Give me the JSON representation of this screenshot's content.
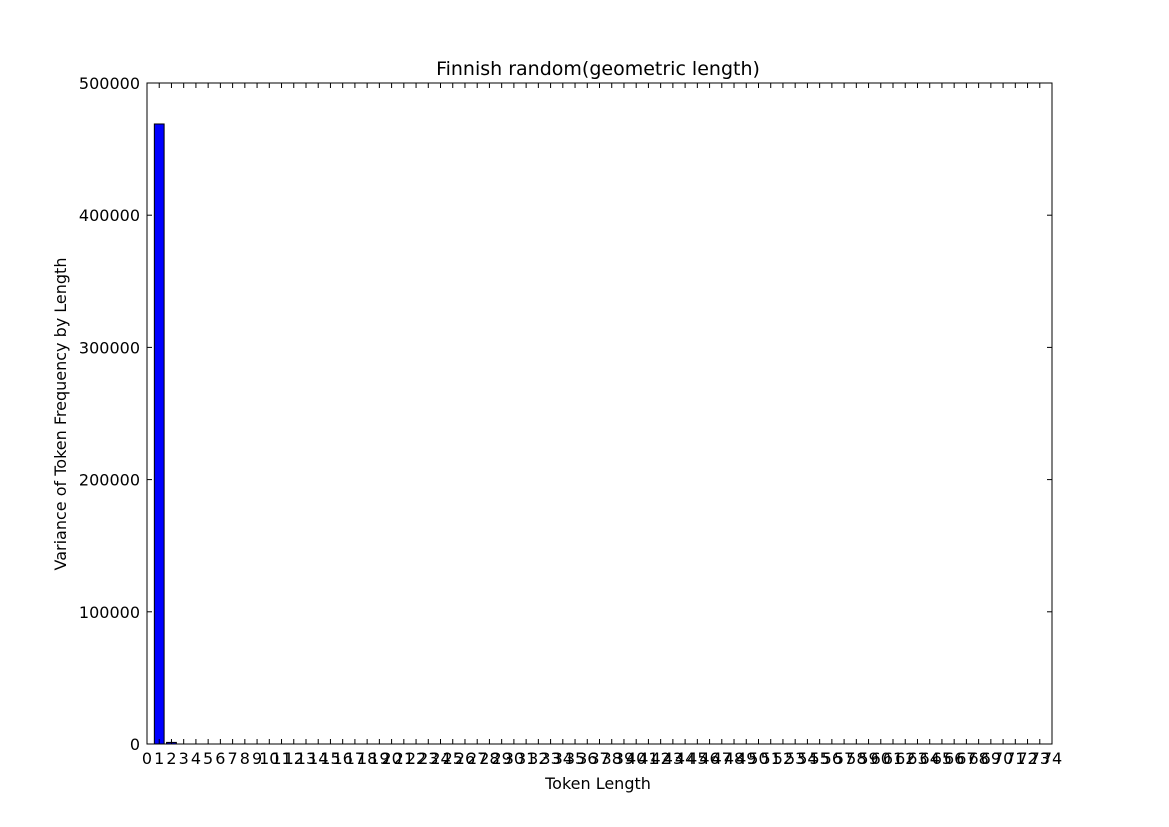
{
  "chart_data": {
    "type": "bar",
    "title": "Finnish random(geometric length)",
    "xlabel": "Token Length",
    "ylabel": "Variance of Token Frequency by Length",
    "x": [
      1,
      2
    ],
    "values": [
      469000,
      1200
    ],
    "xlim": [
      0,
      74
    ],
    "ylim": [
      0,
      500000
    ],
    "xticks": [
      0,
      1,
      2,
      3,
      4,
      5,
      6,
      7,
      8,
      9,
      10,
      11,
      12,
      13,
      14,
      15,
      16,
      17,
      18,
      19,
      20,
      21,
      22,
      23,
      24,
      25,
      26,
      27,
      28,
      29,
      30,
      31,
      32,
      33,
      34,
      35,
      36,
      37,
      38,
      39,
      40,
      41,
      42,
      43,
      44,
      45,
      46,
      47,
      48,
      49,
      50,
      51,
      52,
      53,
      54,
      55,
      56,
      57,
      58,
      59,
      60,
      61,
      62,
      63,
      64,
      65,
      66,
      67,
      68,
      69,
      70,
      71,
      72,
      73,
      74
    ],
    "yticks": [
      0,
      100000,
      200000,
      300000,
      400000,
      500000
    ],
    "bar_width": 0.8,
    "bar_color": "#0000ff",
    "grid": false,
    "legend": "none"
  }
}
